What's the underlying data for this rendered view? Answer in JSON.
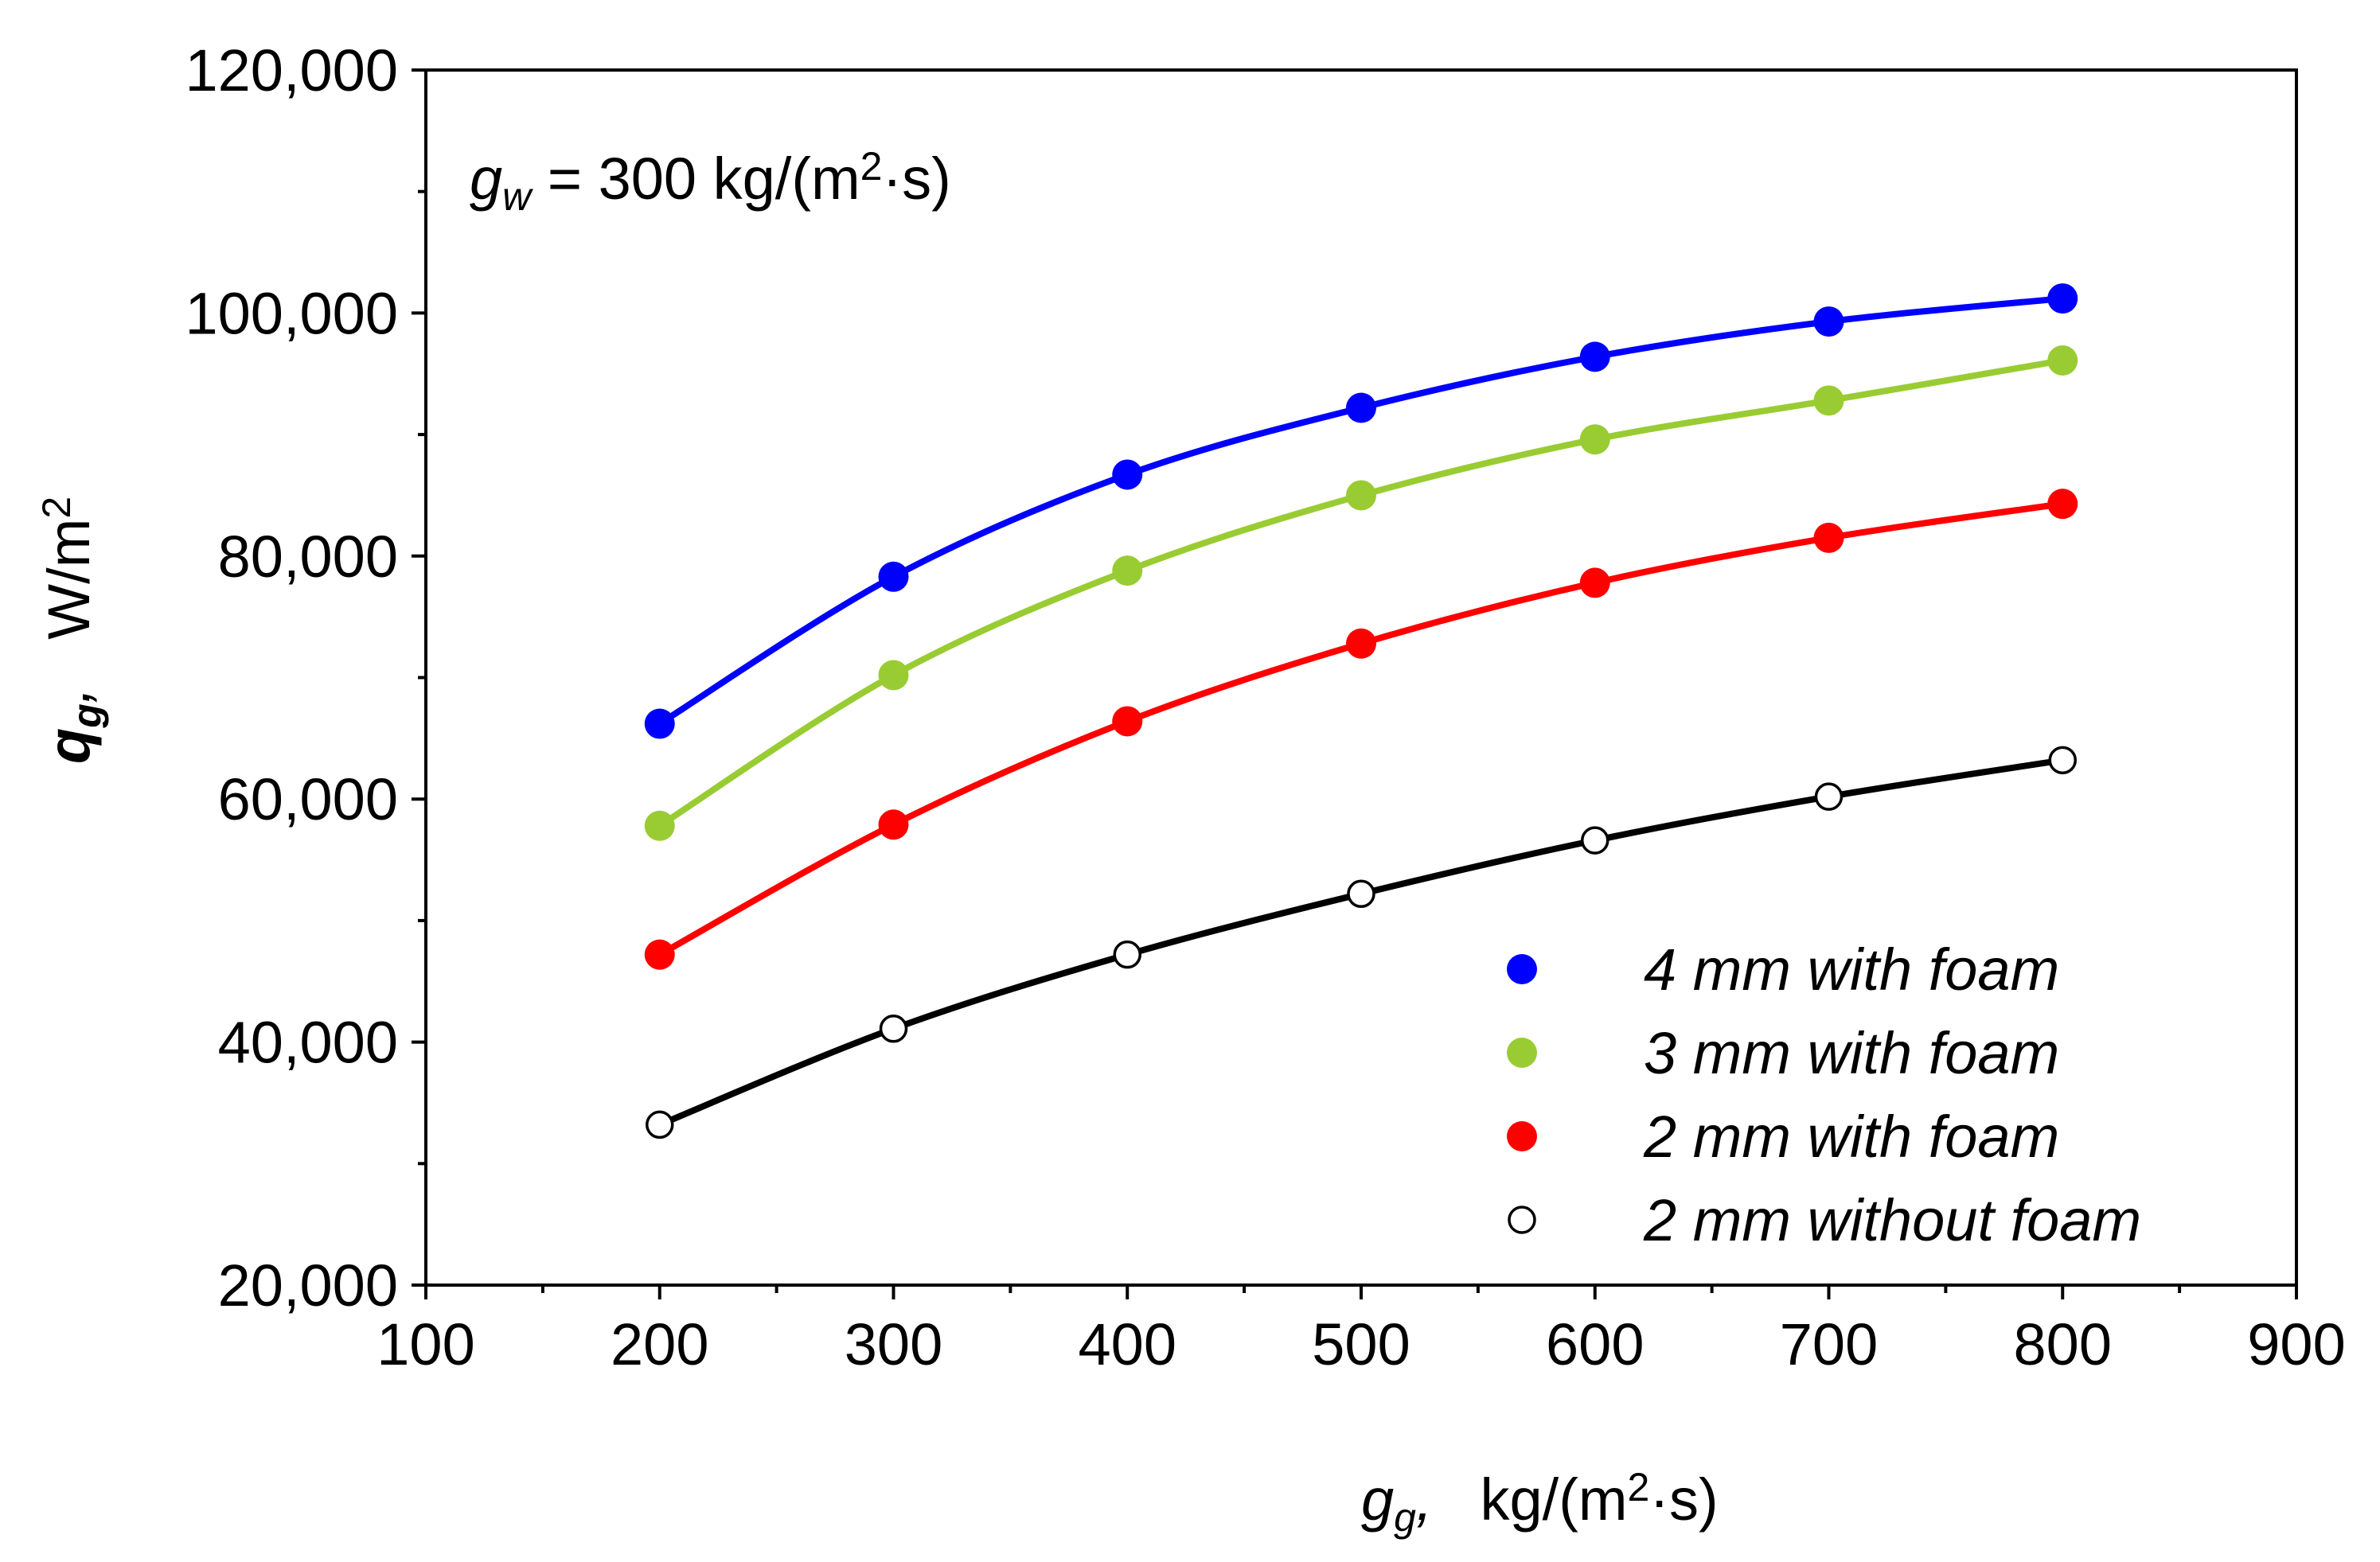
{
  "chart_data": {
    "type": "line",
    "title": "",
    "annotation": {
      "var": "g",
      "var_sub": "w",
      "eq": " = 300 kg/(m",
      "sup": "2",
      "tail": "·s)"
    },
    "xlabel": {
      "var": "g",
      "var_sub": "g",
      "comma": ",",
      "unit": "kg/(m",
      "sup": "2",
      "tail": "·s)"
    },
    "ylabel": {
      "var": "q",
      "var_sub": "g",
      "comma": ",",
      "unit": "W/m",
      "sup": "2"
    },
    "xlim": [
      100,
      900
    ],
    "ylim": [
      20000,
      120000
    ],
    "x_ticks": [
      100,
      200,
      300,
      400,
      500,
      600,
      700,
      800,
      900
    ],
    "x_tick_labels": [
      "100",
      "200",
      "300",
      "400",
      "500",
      "600",
      "700",
      "800",
      "900"
    ],
    "y_ticks": [
      20000,
      40000,
      60000,
      80000,
      100000,
      120000
    ],
    "y_tick_labels": [
      "20,000",
      "40,000",
      "60,000",
      "80,000",
      "100,000",
      "120,000"
    ],
    "x_minor_step": 50,
    "y_minor_step": 10000,
    "grid": false,
    "legend_position": "bottom-right",
    "x": [
      200,
      300,
      400,
      500,
      600,
      700,
      800
    ],
    "series": [
      {
        "name": "4 mm with foam",
        "color": "#0000ff",
        "marker": "filled-circle",
        "values": [
          66200,
          78300,
          86700,
          92200,
          96400,
          99300,
          101200
        ]
      },
      {
        "name": "3 mm with foam",
        "color": "#99cc33",
        "marker": "filled-circle",
        "values": [
          57800,
          70200,
          78800,
          85000,
          89600,
          92800,
          96100
        ]
      },
      {
        "name": "2 mm with foam",
        "color": "#ff0000",
        "marker": "filled-circle",
        "values": [
          47200,
          57900,
          66400,
          72800,
          77800,
          81500,
          84300
        ]
      },
      {
        "name": "2 mm without foam",
        "color": "#000000",
        "marker": "open-circle",
        "values": [
          33200,
          41100,
          47200,
          52200,
          56600,
          60200,
          63200
        ]
      }
    ]
  }
}
